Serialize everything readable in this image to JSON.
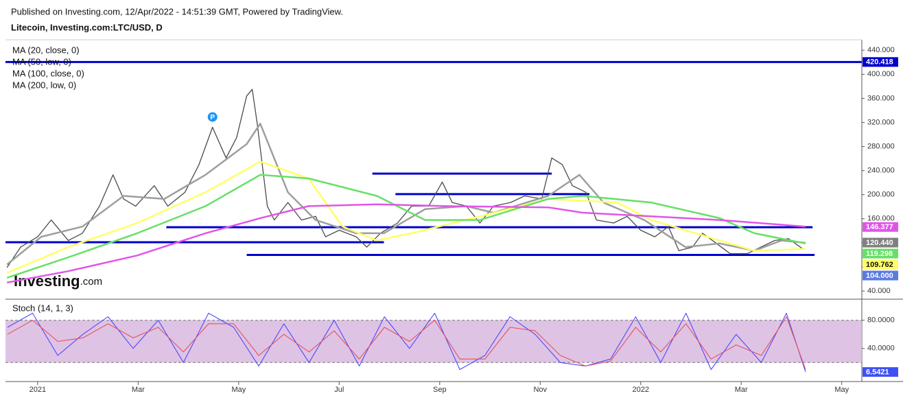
{
  "header": {
    "published": "Published on Investing.com, 12/Apr/2022 - 14:51:39 GMT, Powered by TradingView.",
    "symbol": "Litecoin, Investing.com:LTC/USD, D"
  },
  "logo": {
    "brand": "Investing",
    "suffix": ".com"
  },
  "chart_data": [
    {
      "type": "line",
      "xlim": [
        -0.64,
        16.4
      ],
      "ylim": [
        31,
        455
      ],
      "xticks": [
        {
          "value": 0,
          "label": "2021"
        },
        {
          "value": 2,
          "label": "Mar"
        },
        {
          "value": 4,
          "label": "May"
        },
        {
          "value": 6,
          "label": "Jul"
        },
        {
          "value": 8,
          "label": "Sep"
        },
        {
          "value": 10,
          "label": "Nov"
        },
        {
          "value": 12,
          "label": "2022"
        },
        {
          "value": 14,
          "label": "Mar"
        },
        {
          "value": 16,
          "label": "May"
        }
      ],
      "yticks": [
        {
          "value": 40,
          "label": "40.000"
        },
        {
          "value": 80,
          "label": "80.000"
        },
        {
          "value": 120,
          "label": "120.000"
        },
        {
          "value": 160,
          "label": "160.000"
        },
        {
          "value": 200,
          "label": "200.000"
        },
        {
          "value": 240,
          "label": "240.000"
        },
        {
          "value": 280,
          "label": "280.000"
        },
        {
          "value": 320,
          "label": "320.000"
        },
        {
          "value": 360,
          "label": "360.000"
        },
        {
          "value": 400,
          "label": "400.000"
        },
        {
          "value": 440,
          "label": "440.000"
        }
      ],
      "price": {
        "color": "#4a4a4a",
        "x": [
          -0.61,
          -0.34,
          0,
          0.27,
          0.61,
          0.89,
          1.23,
          1.5,
          1.71,
          1.95,
          2.32,
          2.59,
          2.93,
          3.21,
          3.48,
          3.75,
          3.96,
          4.16,
          4.27,
          4.37,
          4.57,
          4.71,
          4.98,
          5.25,
          5.53,
          5.73,
          6.0,
          6.34,
          6.55,
          6.82,
          7.16,
          7.44,
          7.78,
          8.05,
          8.25,
          8.53,
          8.8,
          9.07,
          9.41,
          9.69,
          10.03,
          10.23,
          10.44,
          10.64,
          10.91,
          11.12,
          11.46,
          11.73,
          12.0,
          12.28,
          12.55,
          12.76,
          13.03,
          13.23,
          13.51,
          13.78,
          14.12,
          14.39,
          14.67,
          14.94,
          15.21
        ],
        "values": [
          79,
          113,
          130,
          158,
          124,
          136,
          181,
          233,
          193,
          181,
          215,
          181,
          204,
          250,
          312,
          261,
          295,
          364,
          375,
          318,
          181,
          158,
          187,
          158,
          164,
          130,
          141,
          130,
          113,
          136,
          153,
          181,
          181,
          221,
          187,
          181,
          153,
          181,
          187,
          198,
          193,
          261,
          250,
          215,
          204,
          158,
          153,
          164,
          141,
          130,
          147,
          107,
          113,
          136,
          119,
          102,
          102,
          113,
          124,
          127,
          111
        ]
      },
      "series": [
        {
          "name": "MA (20, close, 0)",
          "color": "#9e9e9e",
          "x": [
            -0.61,
            0.07,
            0.89,
            1.71,
            2.52,
            3.34,
            4.16,
            4.43,
            4.98,
            5.53,
            6.34,
            6.89,
            7.71,
            8.53,
            9.07,
            10.16,
            10.78,
            11.26,
            12.07,
            12.89,
            13.57,
            14.26,
            14.8,
            15.28
          ],
          "values": [
            84,
            130,
            147,
            198,
            193,
            233,
            284,
            318,
            204,
            158,
            136,
            136,
            176,
            181,
            170,
            198,
            233,
            187,
            158,
            113,
            119,
            107,
            124,
            120
          ]
        },
        {
          "name": "MA (50, low, 0)",
          "color": "#ffff66",
          "x": [
            -0.61,
            0.61,
            1.98,
            3.34,
            4.43,
            5.39,
            6.07,
            6.75,
            7.44,
            8.8,
            10.16,
            11.53,
            12.21,
            13.57,
            14.26,
            15.28
          ],
          "values": [
            70,
            113,
            153,
            204,
            255,
            227,
            147,
            124,
            136,
            164,
            193,
            187,
            158,
            124,
            107,
            110
          ]
        },
        {
          "name": "MA (100, close, 0)",
          "color": "#66e066",
          "x": [
            -0.61,
            0.61,
            1.98,
            3.34,
            4.43,
            5.39,
            6.75,
            7.71,
            8.8,
            10.16,
            10.85,
            12.21,
            13.57,
            14.26,
            15.28
          ],
          "values": [
            62,
            96,
            136,
            181,
            233,
            227,
            198,
            158,
            158,
            193,
            198,
            187,
            161,
            136,
            119
          ]
        },
        {
          "name": "MA (200, low, 0)",
          "color": "#e055e8",
          "x": [
            -0.61,
            0.61,
            1.98,
            3.34,
            4.43,
            5.39,
            6.75,
            8.12,
            10.16,
            10.85,
            12.21,
            13.57,
            15.28
          ],
          "values": [
            54,
            73,
            99,
            136,
            161,
            181,
            184,
            181,
            179,
            170,
            164,
            158,
            147
          ]
        }
      ],
      "levels": [
        {
          "value": 420.418,
          "x": [
            -0.64,
            16.4
          ]
        },
        {
          "value": 121,
          "x": [
            -0.64,
            6.89
          ]
        },
        {
          "value": 146,
          "x": [
            2.56,
            15.42
          ]
        },
        {
          "value": 100,
          "x": [
            4.16,
            15.46
          ]
        },
        {
          "value": 235,
          "x": [
            6.66,
            10.23
          ]
        },
        {
          "value": 201,
          "x": [
            7.12,
            10.98
          ]
        }
      ],
      "level_color": "#0000cc",
      "price_labels": [
        {
          "value": 420.418,
          "label": "420.418",
          "color": "#0000cc"
        },
        {
          "value": 146.377,
          "label": "146.377",
          "color": "#e055e8"
        },
        {
          "value": 120.44,
          "label": "120.440",
          "color": "#808080"
        },
        {
          "value": 119.298,
          "label": "119.298",
          "color": "#66e066"
        },
        {
          "value": 109.762,
          "label": "109.762",
          "color": "#ffff66"
        },
        {
          "value": 104,
          "label": "104.000",
          "color": "#5b7be0"
        }
      ],
      "marker": {
        "label": "P",
        "x": 3.48,
        "value": 320
      }
    },
    {
      "type": "line",
      "title": "Stoch (14, 1, 3)",
      "xlim": [
        -0.64,
        16.4
      ],
      "ylim": [
        -7,
        106
      ],
      "yticks": [
        {
          "value": 40,
          "label": "40.0000"
        },
        {
          "value": 80,
          "label": "80.0000"
        }
      ],
      "band": [
        20,
        80
      ],
      "series": [
        {
          "color": "#4a4aff",
          "x": [
            -0.6,
            -0.1,
            0.4,
            0.9,
            1.4,
            1.9,
            2.4,
            2.9,
            3.4,
            3.9,
            4.4,
            4.9,
            5.4,
            5.9,
            6.4,
            6.9,
            7.4,
            7.9,
            8.4,
            8.9,
            9.4,
            9.9,
            10.4,
            10.9,
            11.4,
            11.9,
            12.4,
            12.9,
            13.4,
            13.9,
            14.4,
            14.9,
            15.28
          ],
          "values": [
            70,
            90,
            30,
            60,
            85,
            40,
            80,
            20,
            90,
            70,
            15,
            75,
            20,
            80,
            15,
            85,
            40,
            90,
            10,
            30,
            85,
            60,
            20,
            15,
            25,
            85,
            20,
            90,
            10,
            60,
            20,
            90,
            6.5421
          ]
        },
        {
          "color": "#e8505b",
          "x": [
            -0.6,
            -0.1,
            0.4,
            0.9,
            1.4,
            1.9,
            2.4,
            2.9,
            3.4,
            3.9,
            4.4,
            4.9,
            5.4,
            5.9,
            6.4,
            6.9,
            7.4,
            7.9,
            8.4,
            8.9,
            9.4,
            9.9,
            10.4,
            10.9,
            11.4,
            11.9,
            12.4,
            12.9,
            13.4,
            13.9,
            14.4,
            14.9,
            15.28
          ],
          "values": [
            60,
            80,
            50,
            55,
            75,
            55,
            70,
            35,
            75,
            75,
            30,
            60,
            35,
            65,
            25,
            70,
            50,
            80,
            25,
            25,
            70,
            65,
            30,
            15,
            22,
            70,
            35,
            75,
            25,
            45,
            30,
            85,
            10
          ]
        }
      ],
      "price_labels": [
        {
          "value": 6.5421,
          "label": "6.5421",
          "color": "#3f51f5"
        }
      ]
    }
  ]
}
